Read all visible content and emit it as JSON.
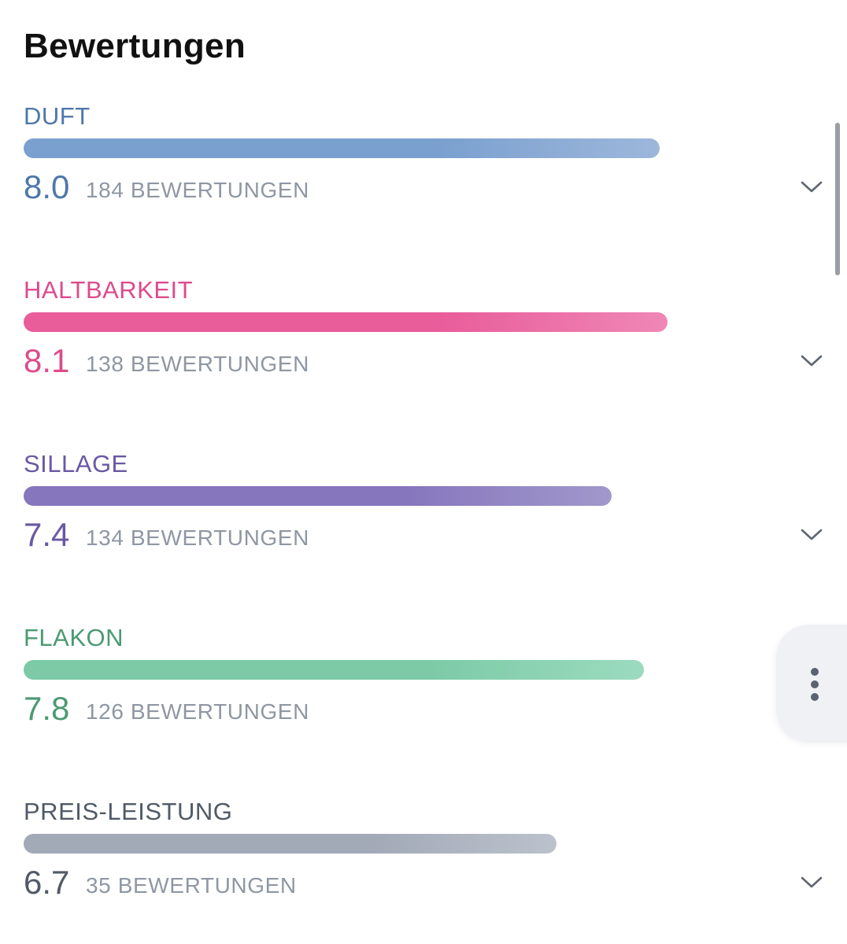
{
  "header": {
    "title": "Bewertungen"
  },
  "ratings": [
    {
      "label": "DUFT",
      "score": "8.0",
      "count": "184 BEWERTUNGEN",
      "value": 8.0,
      "color": "#4f77ab",
      "bar_start": "#7aa0cf",
      "bar_end": "#9db7db"
    },
    {
      "label": "HALTBARKEIT",
      "score": "8.1",
      "count": "138 BEWERTUNGEN",
      "value": 8.1,
      "color": "#de4b8b",
      "bar_start": "#e95d9b",
      "bar_end": "#ef87b6"
    },
    {
      "label": "SILLAGE",
      "score": "7.4",
      "count": "134 BEWERTUNGEN",
      "value": 7.4,
      "color": "#6a58a3",
      "bar_start": "#8676bd",
      "bar_end": "#a198cc"
    },
    {
      "label": "FLAKON",
      "score": "7.8",
      "count": "126 BEWERTUNGEN",
      "value": 7.8,
      "color": "#4b9a72",
      "bar_start": "#7ccaa6",
      "bar_end": "#9bdbbf"
    },
    {
      "label": "PREIS-LEISTUNG",
      "score": "6.7",
      "count": "35 BEWERTUNGEN",
      "value": 6.7,
      "color": "#515a66",
      "bar_start": "#a2a9b7",
      "bar_end": "#bcc2cc"
    }
  ],
  "scale_max": 10,
  "icons": {
    "expand": "chevron-down-icon",
    "more": "more-vertical-icon"
  }
}
